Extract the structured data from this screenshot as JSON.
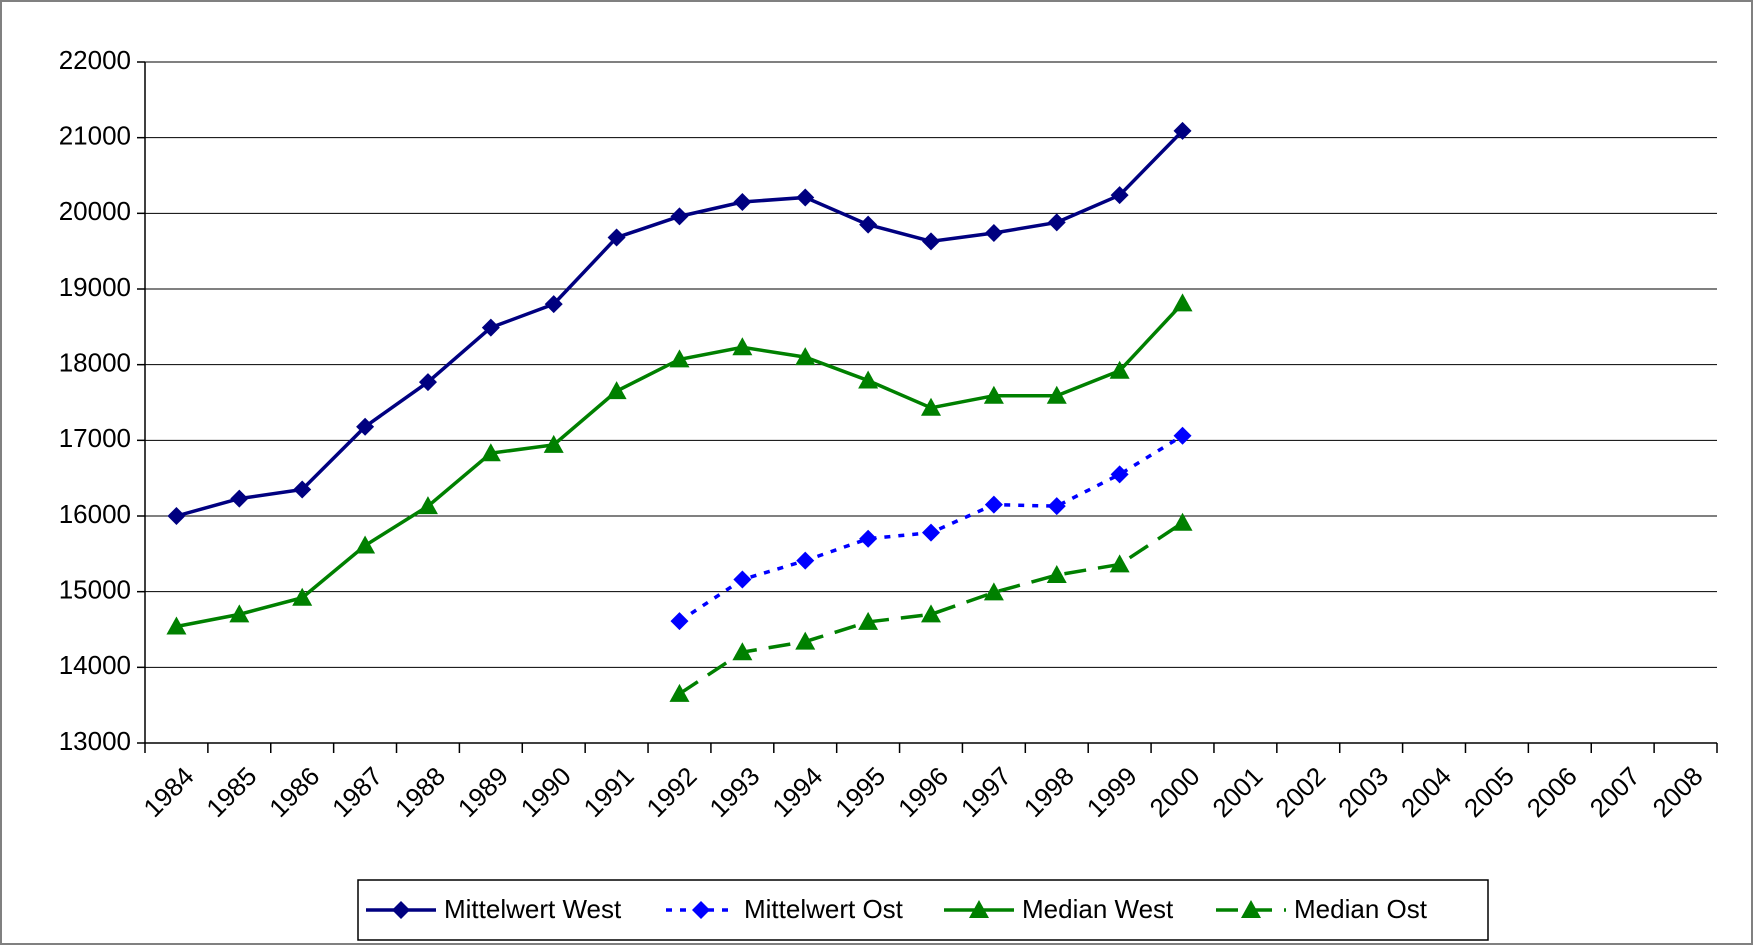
{
  "chart_data": {
    "type": "line",
    "categories": [
      "1984",
      "1985",
      "1986",
      "1987",
      "1988",
      "1989",
      "1990",
      "1991",
      "1992",
      "1993",
      "1994",
      "1995",
      "1996",
      "1997",
      "1998",
      "1999",
      "2000",
      "2001",
      "2002",
      "2003",
      "2004",
      "2005",
      "2006",
      "2007",
      "2008"
    ],
    "series": [
      {
        "name": "Mittelwert West",
        "color": "#000080",
        "dash": "solid",
        "marker": "diamond",
        "values": [
          16000,
          16230,
          16350,
          17180,
          17770,
          18490,
          18800,
          19680,
          19960,
          20150,
          20210,
          19850,
          19630,
          19740,
          19880,
          20240,
          21090,
          null,
          null,
          null,
          null,
          null,
          null,
          null,
          null
        ]
      },
      {
        "name": "Mittelwert Ost",
        "color": "#0000ff",
        "dash": "dotted",
        "marker": "diamond",
        "values": [
          null,
          null,
          null,
          null,
          null,
          null,
          null,
          null,
          14610,
          15160,
          15410,
          15700,
          15780,
          16150,
          16130,
          16550,
          17060,
          null,
          null,
          null,
          null,
          null,
          null,
          null,
          null
        ]
      },
      {
        "name": "Median West",
        "color": "#008000",
        "dash": "solid",
        "marker": "triangle",
        "values": [
          14540,
          14700,
          14920,
          15610,
          16130,
          16830,
          16940,
          17650,
          18070,
          18230,
          18100,
          17790,
          17430,
          17590,
          17590,
          17920,
          18810,
          null,
          null,
          null,
          null,
          null,
          null,
          null,
          null
        ]
      },
      {
        "name": "Median Ost",
        "color": "#008000",
        "dash": "dashed",
        "marker": "triangle",
        "values": [
          null,
          null,
          null,
          null,
          null,
          null,
          null,
          null,
          13650,
          14200,
          14340,
          14600,
          14700,
          14990,
          15220,
          15360,
          15910,
          null,
          null,
          null,
          null,
          null,
          null,
          null,
          null
        ]
      }
    ],
    "ylim": [
      13000,
      22000
    ],
    "yticks": [
      13000,
      14000,
      15000,
      16000,
      17000,
      18000,
      19000,
      20000,
      21000,
      22000
    ],
    "grid": true,
    "legend": "bottom"
  }
}
